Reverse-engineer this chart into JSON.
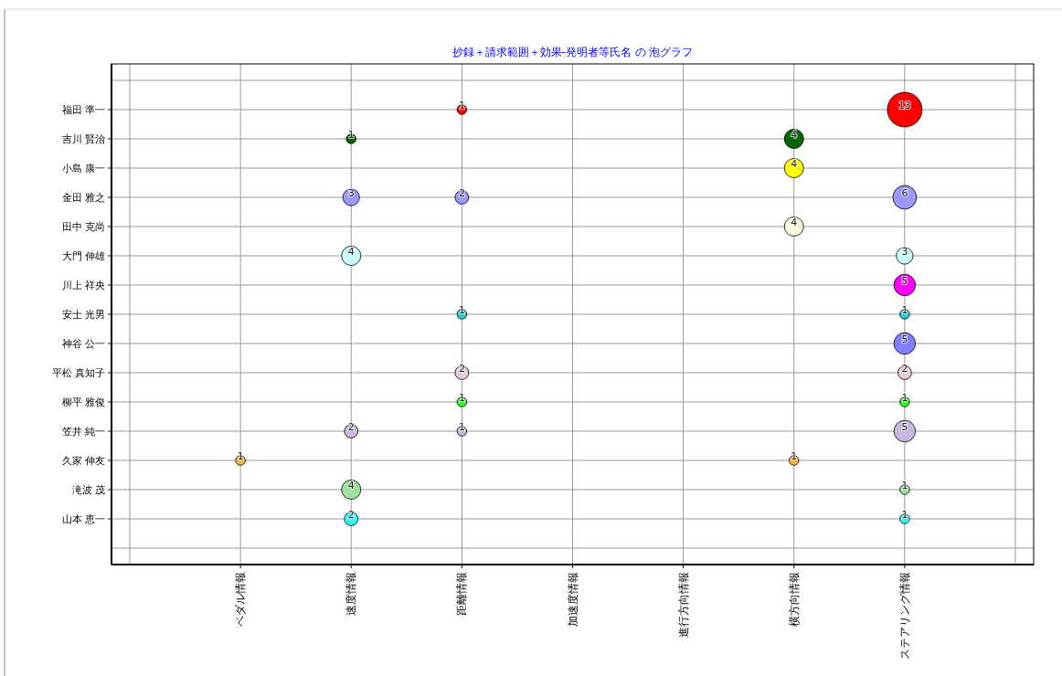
{
  "chart_data": {
    "type": "heatmap",
    "title": "抄録＋請求範囲＋効果-発明者等氏名 の 泡グラフ",
    "categories": [
      "ペダル情報",
      "速度情報",
      "距離情報",
      "加速度情報",
      "進行方向情報",
      "横方向情報",
      "ステアリング情報"
    ],
    "y_categories": [
      "福田 準一",
      "吉川 賢治",
      "小島 康一",
      "金田 雅之",
      "田中 克尚",
      "大門 伸雄",
      "川上 祥央",
      "安士 光男",
      "神谷 公一",
      "平松 真知子",
      "柳平 雅俊",
      "笠井 純一",
      "久家 伸友",
      "滝波 茂",
      "山本 恵一"
    ],
    "cells": [
      [
        null,
        null,
        1,
        null,
        null,
        null,
        13
      ],
      [
        null,
        1,
        null,
        null,
        null,
        4,
        null
      ],
      [
        null,
        null,
        null,
        null,
        null,
        4,
        null
      ],
      [
        null,
        3,
        2,
        null,
        null,
        null,
        6
      ],
      [
        null,
        null,
        null,
        null,
        null,
        4,
        null
      ],
      [
        null,
        4,
        null,
        null,
        null,
        null,
        3
      ],
      [
        null,
        null,
        null,
        null,
        null,
        null,
        5
      ],
      [
        null,
        null,
        1,
        null,
        null,
        null,
        1
      ],
      [
        null,
        null,
        null,
        null,
        null,
        null,
        5
      ],
      [
        null,
        null,
        2,
        null,
        null,
        null,
        2
      ],
      [
        null,
        null,
        1,
        null,
        null,
        null,
        1
      ],
      [
        null,
        2,
        1,
        null,
        null,
        null,
        5
      ],
      [
        1,
        null,
        null,
        null,
        null,
        1,
        null
      ],
      [
        null,
        4,
        null,
        null,
        null,
        null,
        1
      ],
      [
        null,
        2,
        null,
        null,
        null,
        null,
        1
      ]
    ],
    "colors": [
      "#ff0000",
      "#006400",
      "#ffff00",
      "#9999ff",
      "#ffffe0",
      "#ccffff",
      "#ff00ff",
      "#33cccc",
      "#8080ff",
      "#e6ccdd",
      "#33ff33",
      "#c8b8e0",
      "#ffb347",
      "#a0e0a0",
      "#33ffff"
    ],
    "data_labels": true,
    "grid": true
  }
}
